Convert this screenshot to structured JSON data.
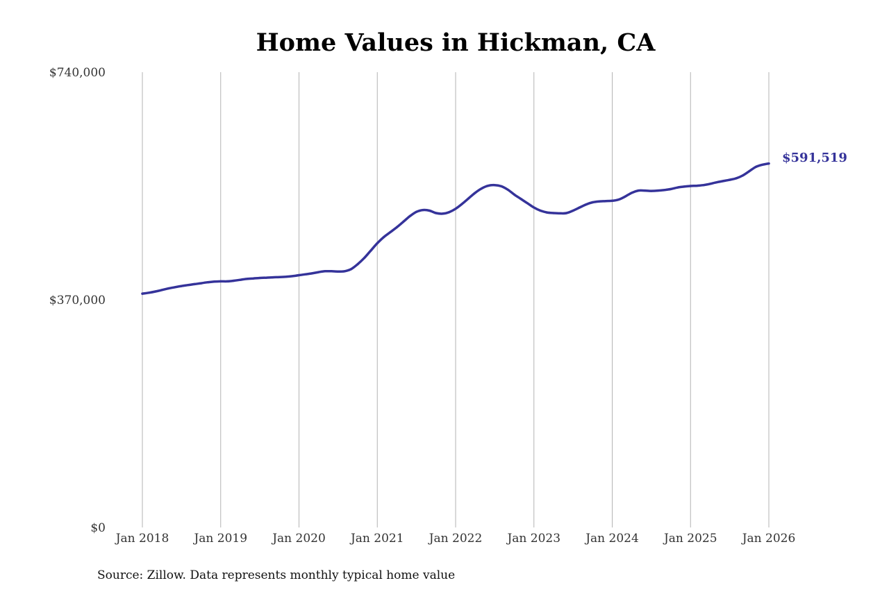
{
  "colors": {
    "series": "#35339a",
    "grid": "#b3b3b3",
    "text": "#333333"
  },
  "chart_data": {
    "type": "line",
    "title": "Home Values in Hickman, CA",
    "xlabel": "",
    "ylabel": "",
    "ylim": [
      0,
      740000
    ],
    "y_ticks": [
      {
        "value": 740000,
        "label": "$740,000"
      },
      {
        "value": 370000,
        "label": "$370,000"
      },
      {
        "value": 0,
        "label": "$0"
      }
    ],
    "x_ticks": [
      {
        "value": "2018-01",
        "label": "Jan 2018"
      },
      {
        "value": "2019-01",
        "label": "Jan 2019"
      },
      {
        "value": "2020-01",
        "label": "Jan 2020"
      },
      {
        "value": "2021-01",
        "label": "Jan 2021"
      },
      {
        "value": "2022-01",
        "label": "Jan 2022"
      },
      {
        "value": "2023-01",
        "label": "Jan 2023"
      },
      {
        "value": "2024-01",
        "label": "Jan 2024"
      },
      {
        "value": "2025-01",
        "label": "Jan 2025"
      },
      {
        "value": "2026-01",
        "label": "Jan 2026"
      }
    ],
    "grid": "vertical",
    "end_label": "$591,519",
    "source": "Source: Zillow. Data represents monthly typical home value",
    "series": [
      {
        "x": [
          "2018-01",
          "2018-02",
          "2018-03",
          "2018-04",
          "2018-05",
          "2018-06",
          "2018-07",
          "2018-08",
          "2018-09",
          "2018-10",
          "2018-11",
          "2018-12",
          "2019-01",
          "2019-02",
          "2019-03",
          "2019-04",
          "2019-05",
          "2019-06",
          "2019-07",
          "2019-08",
          "2019-09",
          "2019-10",
          "2019-11",
          "2019-12",
          "2020-01",
          "2020-02",
          "2020-03",
          "2020-04",
          "2020-05",
          "2020-06",
          "2020-07",
          "2020-08",
          "2020-09",
          "2020-10",
          "2020-11",
          "2020-12",
          "2021-01",
          "2021-02",
          "2021-03",
          "2021-04",
          "2021-05",
          "2021-06",
          "2021-07",
          "2021-08",
          "2021-09",
          "2021-10",
          "2021-11",
          "2021-12",
          "2022-01",
          "2022-02",
          "2022-03",
          "2022-04",
          "2022-05",
          "2022-06",
          "2022-07",
          "2022-08",
          "2022-09",
          "2022-10",
          "2022-11",
          "2022-12",
          "2023-01",
          "2023-02",
          "2023-03",
          "2023-04",
          "2023-05",
          "2023-06",
          "2023-07",
          "2023-08",
          "2023-09",
          "2023-10",
          "2023-11",
          "2023-12",
          "2024-01",
          "2024-02",
          "2024-03",
          "2024-04",
          "2024-05",
          "2024-06",
          "2024-07",
          "2024-08",
          "2024-09",
          "2024-10",
          "2024-11",
          "2024-12",
          "2025-01",
          "2025-02",
          "2025-03",
          "2025-04",
          "2025-05",
          "2025-06",
          "2025-07",
          "2025-08",
          "2025-09",
          "2025-10",
          "2025-11",
          "2025-12",
          "2026-01"
        ],
        "values": [
          380000,
          381500,
          383500,
          386000,
          388500,
          390500,
          392500,
          394000,
          395500,
          397000,
          398500,
          399500,
          400000,
          400000,
          401000,
          402500,
          404000,
          404800,
          405500,
          406000,
          406500,
          407000,
          407500,
          408500,
          410000,
          411500,
          413000,
          415000,
          416500,
          416500,
          416000,
          416500,
          420000,
          428000,
          438000,
          450000,
          462000,
          472000,
          480000,
          488000,
          497000,
          506000,
          513000,
          516000,
          515000,
          511000,
          510000,
          512500,
          518000,
          526000,
          535000,
          544000,
          551000,
          555500,
          556500,
          554500,
          549000,
          541000,
          534000,
          527000,
          520000,
          515000,
          512000,
          511000,
          510500,
          511000,
          515000,
          520000,
          525000,
          528500,
          530000,
          530500,
          531000,
          533000,
          538000,
          544000,
          547500,
          547500,
          547000,
          547500,
          548500,
          550000,
          552500,
          554000,
          555000,
          555500,
          556500,
          558500,
          561000,
          563000,
          565000,
          567500,
          572000,
          579000,
          586000,
          589500,
          591519
        ]
      }
    ]
  }
}
